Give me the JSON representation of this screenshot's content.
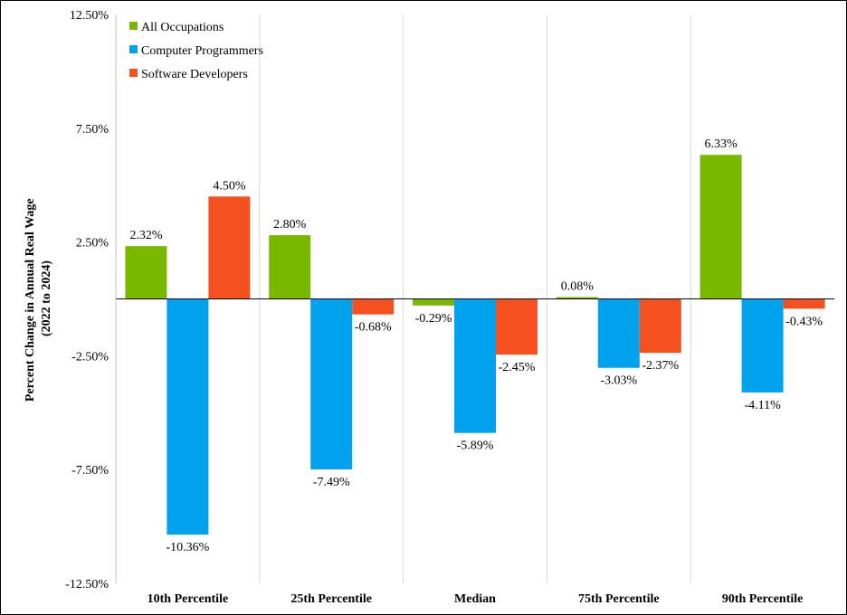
{
  "chart_data": {
    "type": "bar",
    "ylabel_line1": "Percent Change in Annual Real Wage",
    "ylabel_line2": "(2022 to 2024)",
    "ylim": [
      -12.5,
      12.5
    ],
    "y_ticks": [
      12.5,
      7.5,
      2.5,
      -2.5,
      -7.5,
      -12.5
    ],
    "y_tick_labels": [
      "12.50%",
      "7.50%",
      "2.50%",
      "-2.50%",
      "-7.50%",
      "-12.50%"
    ],
    "categories": [
      "10th Percentile",
      "25th Percentile",
      "Median",
      "75th Percentile",
      "90th Percentile"
    ],
    "series": [
      {
        "name": "All Occupations",
        "color": "#7ab800",
        "values": [
          2.32,
          2.8,
          -0.29,
          0.08,
          6.33
        ],
        "labels": [
          "2.32%",
          "2.80%",
          "-0.29%",
          "0.08%",
          "6.33%"
        ]
      },
      {
        "name": "Computer Programmers",
        "color": "#00a2ed",
        "values": [
          -10.36,
          -7.49,
          -5.89,
          -3.03,
          -4.11
        ],
        "labels": [
          "-10.36%",
          "-7.49%",
          "-5.89%",
          "-3.03%",
          "-4.11%"
        ]
      },
      {
        "name": "Software Developers",
        "color": "#f4511e",
        "values": [
          4.5,
          -0.68,
          -2.45,
          -2.37,
          -0.43
        ],
        "labels": [
          "4.50%",
          "-0.68%",
          "-2.45%",
          "-2.37%",
          "-0.43%"
        ]
      }
    ],
    "legend_position": "top-left",
    "grid": "vertical category separators"
  }
}
